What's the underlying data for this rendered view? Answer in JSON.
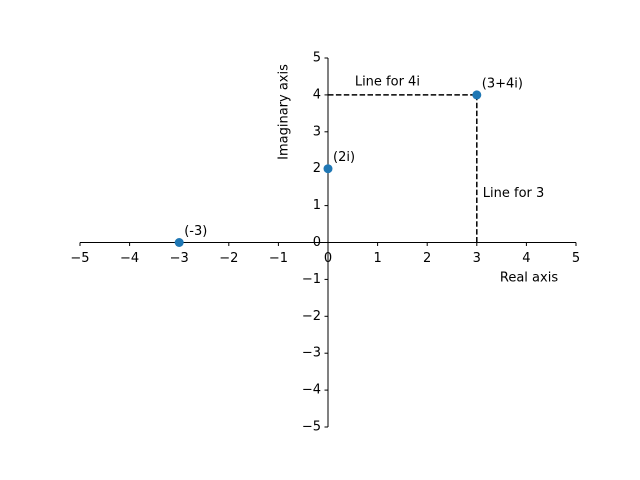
{
  "chart_data": {
    "type": "scatter",
    "x": [
      -3,
      0,
      3
    ],
    "y": [
      0,
      2,
      4
    ],
    "point_labels": [
      "(-3)",
      "(2i)",
      "(3+4i)"
    ],
    "color": "#1f77b4",
    "xlim": [
      -5,
      5
    ],
    "ylim": [
      -5,
      5
    ],
    "xticks": [
      {
        "value": -5,
        "label": "−5"
      },
      {
        "value": -4,
        "label": "−4"
      },
      {
        "value": -3,
        "label": "−3"
      },
      {
        "value": -2,
        "label": "−2"
      },
      {
        "value": -1,
        "label": "−1"
      },
      0,
      1,
      2,
      3,
      4,
      5
    ],
    "yticks": [
      {
        "value": -5,
        "label": "−5"
      },
      {
        "value": -4,
        "label": "−4"
      },
      {
        "value": -3,
        "label": "−3"
      },
      {
        "value": -2,
        "label": "−2"
      },
      {
        "value": -1,
        "label": "−1"
      },
      0,
      1,
      2,
      3,
      4,
      5
    ],
    "xlabel": "Real axis",
    "ylabel": "Imaginary axis",
    "reference_lines": [
      {
        "x": [
          0,
          3
        ],
        "y": [
          4,
          4
        ]
      },
      {
        "x": [
          3,
          3
        ],
        "y": [
          0,
          4
        ]
      }
    ],
    "annotations": [
      "Line for 4i",
      "Line for 3"
    ],
    "grid": false
  }
}
